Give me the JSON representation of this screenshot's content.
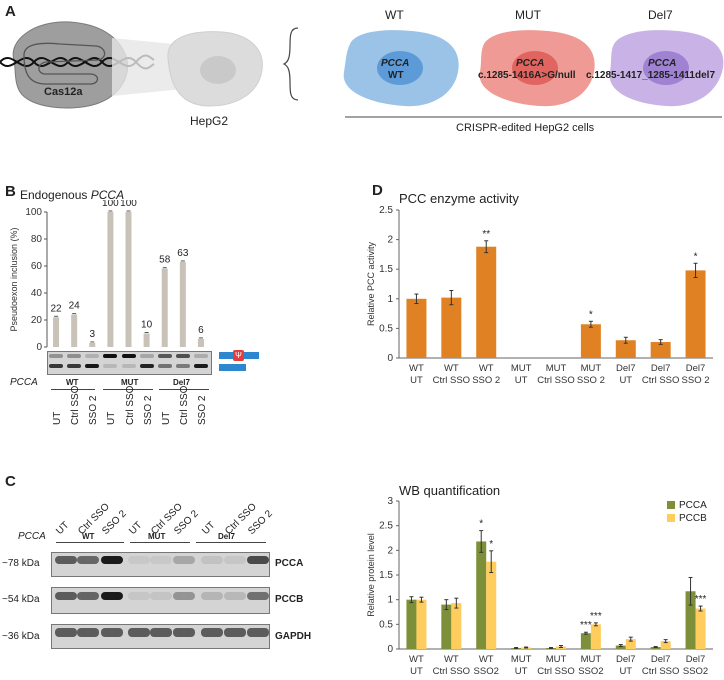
{
  "panel_a": {
    "label": "A",
    "cas": "Cas12a",
    "cell_line": "HepG2",
    "edited_caption": "CRISPR-edited HepG2 cells",
    "cells": [
      {
        "title": "WT",
        "gene": "PCCA",
        "allele": "WT",
        "color": "#9bc3e8",
        "nucleus": "#5d9bd8"
      },
      {
        "title": "MUT",
        "gene": "PCCA",
        "allele": "c.1285-1416A>G/null",
        "color": "#ef9a95",
        "nucleus": "#e06560"
      },
      {
        "title": "Del7",
        "gene": "PCCA",
        "allele": "c.1285-1417_1285-1411del7",
        "color": "#c9b3e6",
        "nucleus": "#9f82d2"
      }
    ]
  },
  "panel_b": {
    "label": "B",
    "title_prefix": "Endogenous ",
    "title_gene": "PCCA",
    "ylabel": "Pseudoexon inclusion (%)",
    "gene_label": "PCCA",
    "groups": [
      "WT",
      "MUT",
      "Del7"
    ],
    "lanes": [
      "UT",
      "Ctrl SSO",
      "SSO 2",
      "UT",
      "Ctrl SSO",
      "SSO 2",
      "UT",
      "Ctrl SSO",
      "SSO 2"
    ]
  },
  "panel_c": {
    "label": "C",
    "gene_label": "PCCA",
    "groups": [
      "WT",
      "MUT",
      "Del7"
    ],
    "lanes": [
      "UT",
      "Ctrl SSO",
      "SSO 2",
      "UT",
      "Ctrl SSO",
      "SSO 2",
      "UT",
      "Ctrl SSO",
      "SSO 2"
    ],
    "rows": [
      {
        "kda": "~78 kDa",
        "name": "PCCA"
      },
      {
        "kda": "~54 kDa",
        "name": "PCCB"
      },
      {
        "kda": "~36 kDa",
        "name": "GAPDH"
      }
    ]
  },
  "panel_d": {
    "label": "D"
  },
  "chart_data": [
    {
      "type": "bar",
      "title": "",
      "ylabel": "Pseudoexon inclusion (%)",
      "ylim": [
        0,
        100
      ],
      "yticks": [
        0,
        20,
        40,
        60,
        80,
        100
      ],
      "categories": [
        "WT UT",
        "WT Ctrl SSO",
        "WT SSO 2",
        "MUT UT",
        "MUT Ctrl SSO",
        "MUT SSO 2",
        "Del7 UT",
        "Del7 Ctrl SSO",
        "Del7 SSO 2"
      ],
      "values": [
        22,
        24,
        3,
        100,
        100,
        10,
        58,
        63,
        6
      ],
      "data_labels": [
        "22",
        "24",
        "3",
        "100",
        "100",
        "10",
        "58",
        "63",
        "6"
      ],
      "color": "#c8c2b8"
    },
    {
      "type": "bar",
      "title": "PCC enzyme activity",
      "ylabel": "Relative PCC activity",
      "ylim": [
        0,
        2.5
      ],
      "yticks": [
        "0",
        "0.5",
        "1",
        "1.5",
        "2",
        "2.5"
      ],
      "categories": [
        [
          "WT",
          "UT"
        ],
        [
          "WT",
          "Ctrl SSO"
        ],
        [
          "WT",
          "SSO 2"
        ],
        [
          "MUT",
          "UT"
        ],
        [
          "MUT",
          "Ctrl SSO"
        ],
        [
          "MUT",
          "SSO 2"
        ],
        [
          "Del7",
          "UT"
        ],
        [
          "Del7",
          "Ctrl SSO"
        ],
        [
          "Del7",
          "SSO 2"
        ]
      ],
      "values": [
        1.0,
        1.02,
        1.88,
        0.0,
        0.0,
        0.57,
        0.3,
        0.27,
        1.48
      ],
      "errors": [
        0.08,
        0.12,
        0.1,
        0,
        0,
        0.05,
        0.05,
        0.04,
        0.12
      ],
      "significance": [
        "",
        "",
        "**",
        "",
        "",
        "*",
        "",
        "",
        "*"
      ],
      "color": "#e08224"
    },
    {
      "type": "bar",
      "title": "WB quantification",
      "ylabel": "Relative protein level",
      "ylim": [
        0,
        3
      ],
      "yticks": [
        "0",
        "0.5",
        "1",
        "1.5",
        "2",
        "2.5",
        "3"
      ],
      "categories": [
        [
          "WT",
          "UT"
        ],
        [
          "WT",
          "Ctrl SSO"
        ],
        [
          "WT",
          "SSO2"
        ],
        [
          "MUT",
          "UT"
        ],
        [
          "MUT",
          "Ctrl SSO"
        ],
        [
          "MUT",
          "SSO2"
        ],
        [
          "Del7",
          "UT"
        ],
        [
          "Del7",
          "Ctrl SSO"
        ],
        [
          "Del7",
          "SSO2"
        ]
      ],
      "legend_position": "top-right",
      "series": [
        {
          "name": "PCCA",
          "color": "#7d8f38",
          "values": [
            1.0,
            0.9,
            2.18,
            0.02,
            0.02,
            0.32,
            0.07,
            0.04,
            1.17
          ],
          "errors": [
            0.06,
            0.1,
            0.22,
            0.01,
            0.01,
            0.02,
            0.02,
            0.01,
            0.28
          ],
          "significance": [
            "",
            "",
            "*",
            "",
            "",
            "***",
            "",
            "",
            ""
          ]
        },
        {
          "name": "PCCB",
          "color": "#ffcc5e",
          "values": [
            1.0,
            0.93,
            1.77,
            0.03,
            0.05,
            0.5,
            0.2,
            0.16,
            0.82
          ],
          "errors": [
            0.05,
            0.1,
            0.22,
            0.01,
            0.02,
            0.03,
            0.04,
            0.03,
            0.05
          ],
          "significance": [
            "",
            "",
            "*",
            "",
            "",
            "***",
            "",
            "",
            "***"
          ]
        }
      ]
    }
  ]
}
